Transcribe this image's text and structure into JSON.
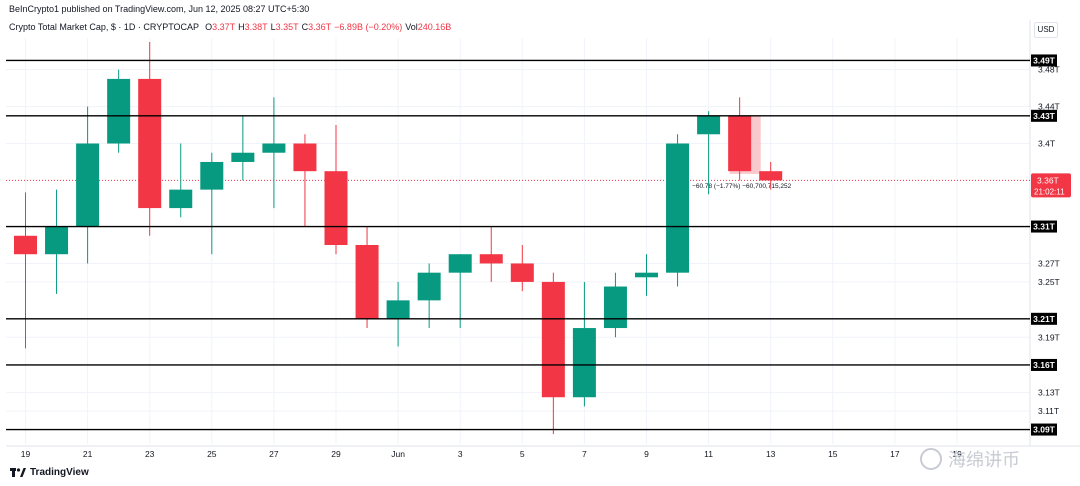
{
  "header": {
    "published": "BeInCrypto1 published on TradingView.com, Jun 12, 2025 08:27 UTC+5:30"
  },
  "legend": {
    "symbol": "Crypto Total Market Cap, $ · 1D · CRYPTOCAP",
    "o_label": "O",
    "o_value": "3.37T",
    "h_label": "H",
    "h_value": "3.38T",
    "l_label": "L",
    "l_value": "3.35T",
    "c_label": "C",
    "c_value": "3.36T",
    "change": "−6.89B (−0.20%)",
    "vol_label": "Vol",
    "vol_value": "240.16B"
  },
  "currency": "USD",
  "footer": {
    "brand": "TradingView"
  },
  "watermark": {
    "text": "海绵讲币"
  },
  "colors": {
    "up": "#089981",
    "down": "#f23645",
    "level_line": "#000000",
    "price_line": "#f23645",
    "measure_fill": "#f8bbc0"
  },
  "chart_data": {
    "type": "candlestick",
    "title": "Crypto Total Market Cap, $ · 1D · CRYPTOCAP",
    "ylabel": "USD",
    "ylim": [
      3.083,
      3.51
    ],
    "y_ticks": [
      "3.48T",
      "3.44T",
      "3.4T",
      "3.27T",
      "3.25T",
      "3.19T",
      "3.13T",
      "3.11T"
    ],
    "y_tick_values": [
      3.48,
      3.44,
      3.4,
      3.27,
      3.25,
      3.19,
      3.13,
      3.11
    ],
    "x_ticks": [
      "19",
      "21",
      "23",
      "25",
      "27",
      "29",
      "Jun",
      "3",
      "5",
      "7",
      "9",
      "11",
      "13",
      "15",
      "17",
      "19"
    ],
    "x_tick_index": [
      0,
      2,
      4,
      6,
      8,
      10,
      12,
      14,
      16,
      18,
      20,
      22,
      24,
      26,
      28,
      30
    ],
    "candles": [
      {
        "o": 3.3,
        "h": 3.347,
        "l": 3.178,
        "c": 3.28
      },
      {
        "o": 3.28,
        "h": 3.35,
        "l": 3.237,
        "c": 3.31
      },
      {
        "o": 3.31,
        "h": 3.44,
        "l": 3.27,
        "c": 3.4
      },
      {
        "o": 3.4,
        "h": 3.48,
        "l": 3.39,
        "c": 3.47
      },
      {
        "o": 3.47,
        "h": 3.51,
        "l": 3.3,
        "c": 3.33
      },
      {
        "o": 3.33,
        "h": 3.4,
        "l": 3.32,
        "c": 3.35
      },
      {
        "o": 3.35,
        "h": 3.39,
        "l": 3.28,
        "c": 3.38
      },
      {
        "o": 3.38,
        "h": 3.43,
        "l": 3.36,
        "c": 3.39
      },
      {
        "o": 3.39,
        "h": 3.45,
        "l": 3.33,
        "c": 3.4
      },
      {
        "o": 3.4,
        "h": 3.41,
        "l": 3.31,
        "c": 3.37
      },
      {
        "o": 3.37,
        "h": 3.42,
        "l": 3.28,
        "c": 3.29
      },
      {
        "o": 3.29,
        "h": 3.31,
        "l": 3.2,
        "c": 3.21
      },
      {
        "o": 3.21,
        "h": 3.25,
        "l": 3.18,
        "c": 3.23
      },
      {
        "o": 3.23,
        "h": 3.27,
        "l": 3.2,
        "c": 3.26
      },
      {
        "o": 3.26,
        "h": 3.28,
        "l": 3.2,
        "c": 3.28
      },
      {
        "o": 3.28,
        "h": 3.31,
        "l": 3.25,
        "c": 3.27
      },
      {
        "o": 3.27,
        "h": 3.29,
        "l": 3.24,
        "c": 3.25
      },
      {
        "o": 3.25,
        "h": 3.26,
        "l": 3.085,
        "c": 3.125
      },
      {
        "o": 3.125,
        "h": 3.25,
        "l": 3.115,
        "c": 3.2
      },
      {
        "o": 3.2,
        "h": 3.26,
        "l": 3.19,
        "c": 3.245
      },
      {
        "o": 3.255,
        "h": 3.28,
        "l": 3.235,
        "c": 3.26
      },
      {
        "o": 3.26,
        "h": 3.41,
        "l": 3.245,
        "c": 3.4
      },
      {
        "o": 3.41,
        "h": 3.435,
        "l": 3.345,
        "c": 3.43
      },
      {
        "o": 3.43,
        "h": 3.45,
        "l": 3.36,
        "c": 3.37
      },
      {
        "o": 3.37,
        "h": 3.38,
        "l": 3.35,
        "c": 3.36
      }
    ],
    "horizontal_levels": [
      {
        "value": 3.49,
        "label": "3.49T"
      },
      {
        "value": 3.43,
        "label": "3.43T"
      },
      {
        "value": 3.31,
        "label": "3.31T"
      },
      {
        "value": 3.21,
        "label": "3.21T"
      },
      {
        "value": 3.16,
        "label": "3.16T"
      },
      {
        "value": 3.09,
        "label": "3.09T"
      }
    ],
    "current_price": {
      "value": 3.36,
      "label": "3.36T",
      "countdown": "21:02:11"
    },
    "measure": {
      "from": 3.43,
      "to": 3.367,
      "from_index": 23,
      "to_index": 24,
      "text": "−60.78 (−1.77%) −60,700,715,252"
    },
    "grid": true,
    "legend": "top-left"
  }
}
